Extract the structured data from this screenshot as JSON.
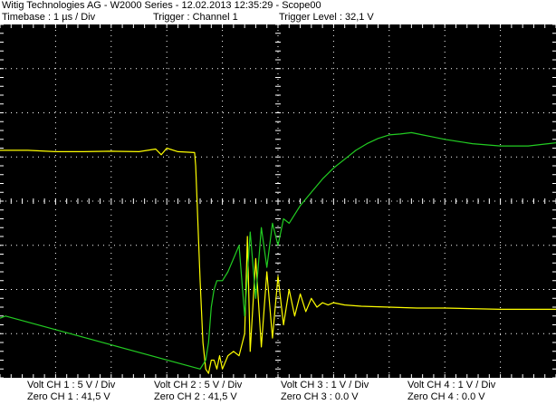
{
  "header": {
    "title": "Witig Technologies AG - W2000 Series  -  12.02.2013 12:35:29 - Scope00",
    "timebase": "Timebase : 1 µs / Div",
    "trigger": "Trigger : Channel 1",
    "trigger_level": "Trigger Level : 32,1 V"
  },
  "footer": {
    "channels": [
      {
        "volt": "Volt CH 1 : 5 V / Div",
        "zero": "Zero CH 1 : 41,5 V"
      },
      {
        "volt": "Volt CH 2 : 5 V / Div",
        "zero": "Zero CH 2 : 41,5 V"
      },
      {
        "volt": "Volt CH 3 : 1 V / Div",
        "zero": "Zero CH 3 : 0.0 V"
      },
      {
        "volt": "Volt CH 4 : 1 V / Div",
        "zero": "Zero CH 4 : 0.0 V"
      }
    ]
  },
  "colors": {
    "background": "#000000",
    "grid": "#ffffff",
    "ch1": "#ffff00",
    "ch2": "#22cc22"
  },
  "chart_data": {
    "type": "line",
    "title": "",
    "xlabel": "",
    "ylabel": "",
    "grid": true,
    "xlim": [
      0,
      10
    ],
    "ylim": [
      -4,
      4
    ],
    "x_unit": "divisions",
    "y_unit": "divisions",
    "series": [
      {
        "channel": 1,
        "color": "#ffff00",
        "x": [
          0,
          0.5,
          1.0,
          1.5,
          2.0,
          2.5,
          2.8,
          2.9,
          3.0,
          3.2,
          3.5,
          3.52,
          3.55,
          3.6,
          3.65,
          3.7,
          3.75,
          3.8,
          3.85,
          3.9,
          3.95,
          4.0,
          4.1,
          4.2,
          4.3,
          4.4,
          4.45,
          4.5,
          4.6,
          4.7,
          4.8,
          4.9,
          5.0,
          5.1,
          5.2,
          5.3,
          5.4,
          5.5,
          5.6,
          5.7,
          5.8,
          5.9,
          6.0,
          6.2,
          6.5,
          7.0,
          7.5,
          8.0,
          9.0,
          10.0
        ],
        "y": [
          1.15,
          1.15,
          1.12,
          1.12,
          1.13,
          1.12,
          1.18,
          1.05,
          1.2,
          1.12,
          1.1,
          0.8,
          -0.2,
          -1.8,
          -3.2,
          -3.8,
          -3.9,
          -3.6,
          -3.6,
          -3.8,
          -3.5,
          -3.8,
          -3.5,
          -3.4,
          -3.5,
          -3.0,
          -0.8,
          -3.4,
          -1.3,
          -3.3,
          -1.6,
          -3.1,
          -1.7,
          -2.8,
          -2.0,
          -2.6,
          -2.1,
          -2.5,
          -2.2,
          -2.4,
          -2.3,
          -2.35,
          -2.3,
          -2.35,
          -2.38,
          -2.4,
          -2.42,
          -2.42,
          -2.45,
          -2.45
        ]
      },
      {
        "channel": 2,
        "color": "#22cc22",
        "x": [
          0,
          0.1,
          3.6,
          3.7,
          3.75,
          3.8,
          3.85,
          3.9,
          3.95,
          4.0,
          4.1,
          4.2,
          4.3,
          4.4,
          4.5,
          4.6,
          4.7,
          4.8,
          4.9,
          5.0,
          5.1,
          5.2,
          5.4,
          5.6,
          5.8,
          6.0,
          6.2,
          6.4,
          6.6,
          6.8,
          7.0,
          7.2,
          7.4,
          7.6,
          7.8,
          8.0,
          8.5,
          9.0,
          9.5,
          10.0
        ],
        "y": [
          -2.65,
          -2.6,
          -3.8,
          -3.6,
          -3.2,
          -2.4,
          -2.0,
          -1.8,
          -1.8,
          -1.8,
          -1.6,
          -1.3,
          -1.0,
          -2.6,
          -0.7,
          -2.2,
          -0.6,
          -1.5,
          -0.5,
          -1.0,
          -0.4,
          -0.5,
          -0.1,
          0.2,
          0.5,
          0.75,
          0.95,
          1.15,
          1.3,
          1.42,
          1.5,
          1.52,
          1.55,
          1.5,
          1.45,
          1.4,
          1.3,
          1.25,
          1.25,
          1.32
        ]
      }
    ]
  }
}
